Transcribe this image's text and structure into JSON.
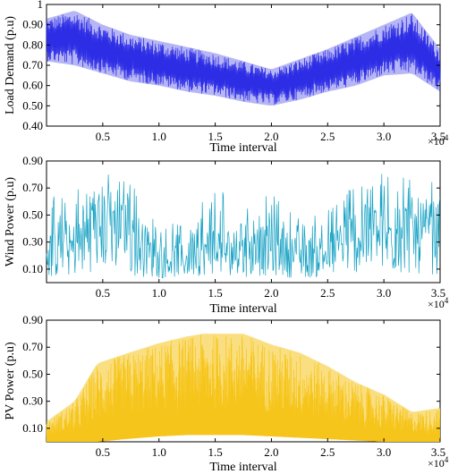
{
  "chart_data": [
    {
      "type": "line",
      "title": "",
      "xlabel": "Time interval",
      "ylabel": "Load Demand (p.u)",
      "x_multiplier": "×10",
      "x_exponent": "4",
      "xlim": [
        0,
        35000
      ],
      "ylim": [
        0.4,
        1.0
      ],
      "xticks": [
        5000,
        10000,
        15000,
        20000,
        25000,
        30000,
        35000
      ],
      "xtick_labels": [
        "0.5",
        "1.0",
        "1.5",
        "2.0",
        "2.5",
        "3.0",
        "3.5"
      ],
      "yticks": [
        0.4,
        0.5,
        0.6,
        0.7,
        0.8,
        0.9,
        1.0
      ],
      "ytick_labels": [
        "0.40",
        "0.50",
        "0.60",
        "0.70",
        "0.80",
        "0.90",
        "1"
      ],
      "grid": false,
      "color": "#2d2de6",
      "series": [
        {
          "x": [
            0,
            2500,
            5000,
            7500,
            10000,
            12500,
            15000,
            17500,
            20000,
            22500,
            25000,
            27500,
            30000,
            32500,
            35000
          ],
          "upper": [
            0.93,
            0.97,
            0.9,
            0.85,
            0.82,
            0.79,
            0.76,
            0.72,
            0.68,
            0.73,
            0.78,
            0.84,
            0.9,
            0.96,
            0.78
          ],
          "mid": [
            0.83,
            0.83,
            0.77,
            0.73,
            0.7,
            0.67,
            0.65,
            0.62,
            0.6,
            0.63,
            0.67,
            0.71,
            0.77,
            0.8,
            0.67
          ],
          "lower": [
            0.72,
            0.7,
            0.66,
            0.62,
            0.6,
            0.57,
            0.55,
            0.52,
            0.5,
            0.53,
            0.57,
            0.6,
            0.65,
            0.66,
            0.57
          ]
        }
      ]
    },
    {
      "type": "line",
      "title": "",
      "xlabel": "Time interval",
      "ylabel": "Wind Power (p.u)",
      "x_multiplier": "×10",
      "x_exponent": "4",
      "xlim": [
        0,
        35000
      ],
      "ylim": [
        0.0,
        0.9
      ],
      "xticks": [
        5000,
        10000,
        15000,
        20000,
        25000,
        30000,
        35000
      ],
      "xtick_labels": [
        "0.5",
        "1.0",
        "1.5",
        "2.0",
        "2.5",
        "3.0",
        "3.5"
      ],
      "yticks": [
        0.1,
        0.3,
        0.5,
        0.7,
        0.9
      ],
      "ytick_labels": [
        "0.10",
        "0.30",
        "0.50",
        "0.70",
        "0.90"
      ],
      "grid": false,
      "color": "#17a2c4",
      "series": [
        {
          "x": [
            0,
            2500,
            5000,
            7500,
            10000,
            12500,
            15000,
            17500,
            20000,
            22500,
            25000,
            27500,
            30000,
            32500,
            35000
          ],
          "upper": [
            0.62,
            0.72,
            0.82,
            0.8,
            0.4,
            0.48,
            0.74,
            0.56,
            0.66,
            0.5,
            0.54,
            0.78,
            0.82,
            0.83,
            0.8
          ],
          "mid": [
            0.25,
            0.3,
            0.5,
            0.4,
            0.18,
            0.2,
            0.3,
            0.25,
            0.3,
            0.22,
            0.25,
            0.38,
            0.4,
            0.42,
            0.4
          ],
          "lower": [
            0.03,
            0.05,
            0.1,
            0.05,
            0.03,
            0.04,
            0.06,
            0.04,
            0.05,
            0.03,
            0.04,
            0.07,
            0.05,
            0.06,
            0.06
          ]
        }
      ]
    },
    {
      "type": "area",
      "title": "",
      "xlabel": "Time interval",
      "ylabel": "PV Power (p.u)",
      "x_multiplier": "×10",
      "x_exponent": "4",
      "xlim": [
        0,
        35000
      ],
      "ylim": [
        0.0,
        0.9
      ],
      "xticks": [
        5000,
        10000,
        15000,
        20000,
        25000,
        30000,
        35000
      ],
      "xtick_labels": [
        "0.5",
        "1.0",
        "1.5",
        "2.0",
        "2.5",
        "3.0",
        "3.5"
      ],
      "yticks": [
        0.1,
        0.3,
        0.5,
        0.7,
        0.9
      ],
      "ytick_labels": [
        "0.10",
        "0.30",
        "0.50",
        "0.70",
        "0.90"
      ],
      "grid": false,
      "color": "#f6c51b",
      "series": [
        {
          "x": [
            0,
            2500,
            4500,
            7000,
            10000,
            12500,
            14000,
            17500,
            20000,
            22500,
            25000,
            27500,
            30000,
            32500,
            35000
          ],
          "upper": [
            0.15,
            0.3,
            0.58,
            0.65,
            0.73,
            0.78,
            0.8,
            0.8,
            0.72,
            0.66,
            0.56,
            0.44,
            0.35,
            0.22,
            0.25
          ],
          "mid": [
            0.05,
            0.08,
            0.2,
            0.3,
            0.36,
            0.4,
            0.42,
            0.4,
            0.35,
            0.3,
            0.25,
            0.2,
            0.12,
            0.06,
            0.08
          ],
          "lower": [
            0.0,
            0.0,
            0.0,
            0.02,
            0.04,
            0.05,
            0.05,
            0.05,
            0.04,
            0.03,
            0.02,
            0.01,
            0.0,
            0.0,
            0.0
          ]
        }
      ]
    }
  ]
}
